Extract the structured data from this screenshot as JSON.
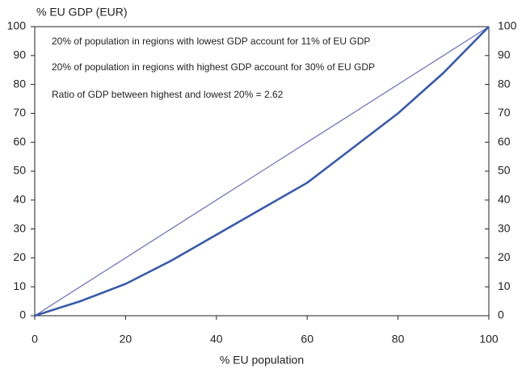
{
  "chart_data": {
    "type": "line",
    "y_axis_label": "% EU GDP (EUR)",
    "x_axis_label": "% EU population",
    "annotations": [
      "20% of population in regions with lowest GDP account for 11% of EU GDP",
      "20% of population in regions with highest GDP account for 30% of EU GDP",
      "Ratio of GDP between highest and lowest 20% = 2.62"
    ],
    "x": [
      0,
      10,
      20,
      30,
      40,
      50,
      60,
      70,
      80,
      90,
      100
    ],
    "series": [
      {
        "color": "#7478b8",
        "values": [
          0,
          10,
          20,
          30,
          40,
          50,
          60,
          70,
          80,
          90,
          100
        ]
      },
      {
        "color": "#3a5aa8",
        "values": [
          0,
          5,
          11,
          19,
          28,
          37,
          46,
          58,
          70,
          84,
          100
        ]
      }
    ],
    "xlim": [
      0,
      100
    ],
    "xticks": [
      0,
      20,
      40,
      60,
      80,
      100
    ],
    "ylim": [
      0,
      100
    ],
    "yticks": [
      0,
      10,
      20,
      30,
      40,
      50,
      60,
      70,
      80,
      90,
      100
    ],
    "y2lim": [
      0,
      100
    ],
    "y2ticks": [
      0,
      10,
      20,
      30,
      40,
      50,
      60,
      70,
      80,
      90,
      100
    ],
    "grid": false
  }
}
